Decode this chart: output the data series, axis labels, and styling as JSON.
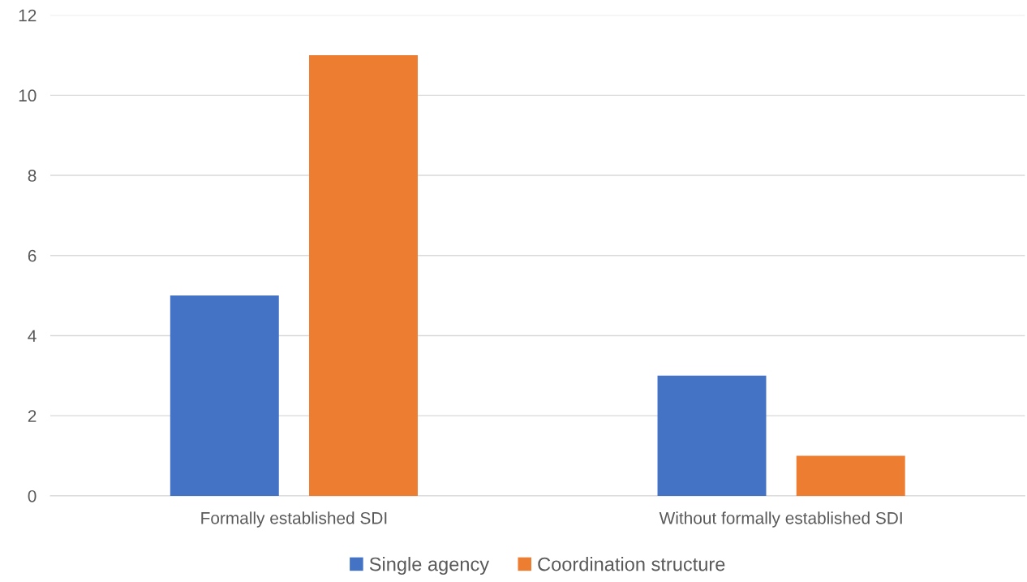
{
  "chart_data": {
    "type": "bar",
    "categories": [
      "Formally established SDI",
      "Without formally established SDI"
    ],
    "series": [
      {
        "name": "Single agency",
        "color": "#4472c4",
        "values": [
          5,
          3
        ]
      },
      {
        "name": "Coordination structure",
        "color": "#ed7d31",
        "values": [
          11,
          1
        ]
      }
    ],
    "ylim": [
      0,
      12
    ],
    "yticks": [
      0,
      2,
      4,
      6,
      8,
      10,
      12
    ],
    "grid": "y",
    "legend": "bottom"
  }
}
